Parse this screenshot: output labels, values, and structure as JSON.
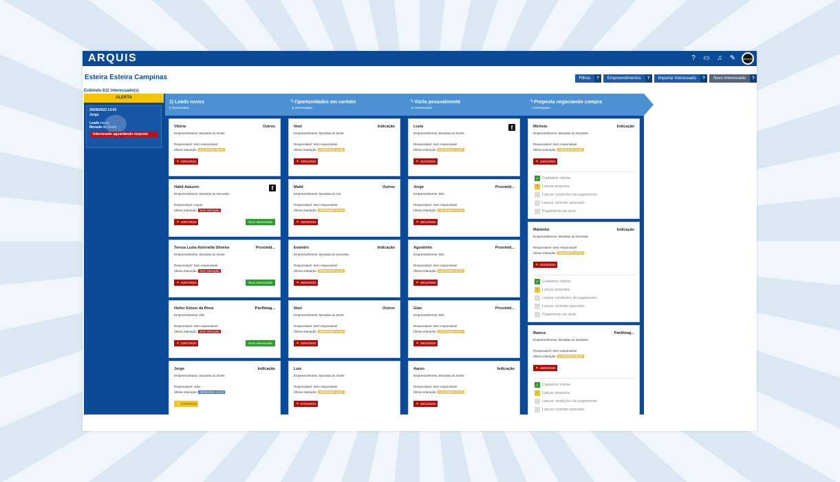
{
  "app": {
    "logo": "ARQUIS",
    "title": "Esteira Esteira Campinas",
    "count_text": "Exibindo 812 interessado(s)",
    "avatar_text": "ARQUIS"
  },
  "topbar_icons": [
    "help-icon",
    "chat-icon",
    "bell-icon",
    "edit-icon"
  ],
  "actions": [
    {
      "label": "Filtros",
      "q": "?"
    },
    {
      "label": "Empreendimentos",
      "q": "?"
    },
    {
      "label": "Importar Interessado",
      "q": "?"
    },
    {
      "label": "Novo Interessado",
      "q": "?"
    }
  ],
  "alert": {
    "header": "ALERTA",
    "card": {
      "date": "26/09/2023 13:03",
      "name": "Jorge",
      "line1_label": "Leads",
      "line1_value": "novos",
      "line2_label": "Morada",
      "line2_value": "do Oeste",
      "message": "Interessado aguardando resposta"
    }
  },
  "columns": [
    {
      "title": "1) Leads novos",
      "sub": "5 interessados",
      "cards": [
        {
          "name": "Vitória",
          "source": "Outros",
          "emp": "Empreendimento: Moradas do Oeste",
          "resp": "Responsável: Sem responsável",
          "last_label": "Última interação:",
          "last": "01/05/2023 09:47",
          "last_color": "yellow",
          "date": "02/01/2021",
          "badge": ""
        },
        {
          "name": "Habit Aatuzen",
          "source": "",
          "emp": "Empreendimento: Moradas do Noroeste",
          "resp": "Responsável: Arquis",
          "last_label": "Última interação:",
          "last": "Sem interação",
          "last_color": "red",
          "date": "22/07/2023",
          "badge": "Novo interessado"
        },
        {
          "name": "Tereza Luzia Antonella Silveira",
          "source": "Proximid...",
          "emp": "Empreendimento: Moradas do Oeste",
          "resp": "Responsável: Sem responsável",
          "last_label": "Última interação:",
          "last": "Sem interação",
          "last_color": "red",
          "date": "22/07/2023",
          "badge": "Novo interessado"
        },
        {
          "name": "Heitor Edson da Rosa",
          "source": "Panfletag...",
          "emp": "Empreendimento: N/D",
          "resp": "Responsável: Sem responsável",
          "last_label": "Última interação:",
          "last": "Sem interação",
          "last_color": "red",
          "date": "22/07/2023",
          "badge": "Novo interessado"
        },
        {
          "name": "Jorge",
          "source": "Indicação",
          "emp": "Empreendimento: Moradas do Oeste",
          "resp": "Responsável: João",
          "last_label": "Última interação:",
          "last": "26/09/2023 13:03",
          "last_color": "blue",
          "date": "27/09/2023",
          "badge": ""
        }
      ]
    },
    {
      "title": "2) Oportunidades em contato",
      "sub": "646 interessados",
      "cards": [
        {
          "name": "Noel",
          "source": "Indicação",
          "emp": "Empreendimento: Moradas do Norte",
          "resp": "Responsável: Sem responsável",
          "last_label": "Última interação:",
          "last": "03/01/2022 11:04",
          "last_color": "yellow",
          "date": "10/01/2022",
          "badge": ""
        },
        {
          "name": "Maitê",
          "source": "Outros",
          "emp": "Empreendimento: Moradas do Sul",
          "resp": "Responsável: Sem responsável",
          "last_label": "Última interação:",
          "last": "06/01/2022 10:45",
          "last_color": "yellow",
          "date": "16/04/2022",
          "badge": ""
        },
        {
          "name": "Evandro",
          "source": "Indicação",
          "emp": "Empreendimento: Moradas do Noroeste",
          "resp": "Responsável: Sem responsável",
          "last_label": "Última interação:",
          "last": "06/01/2022 12:14",
          "last_color": "yellow",
          "date": "29/04/2022",
          "badge": ""
        },
        {
          "name": "Noel",
          "source": "Outros",
          "emp": "Empreendimento: Moradas do Norte",
          "resp": "Responsável: Sem responsável",
          "last_label": "Última interação:",
          "last": "06/01/2022 12:49",
          "last_color": "yellow",
          "date": "22/01/2022",
          "badge": ""
        },
        {
          "name": "Luis",
          "source": "",
          "emp": "Empreendimento: Moradas do Oeste",
          "resp": "Responsável: Sem responsável",
          "last_label": "Última interação:",
          "last": "06/01/2022 13:01",
          "last_color": "yellow",
          "date": "07/04/2022",
          "badge": ""
        }
      ]
    },
    {
      "title": "3) Visita pessoalmente",
      "sub": "132 interessados",
      "cards": [
        {
          "name": "Luzia",
          "source": "",
          "emp": "Empreendimento: Moradas do Oeste",
          "resp": "Responsável: Sem responsável",
          "last_label": "Última interação:",
          "last": "02/09/2022 13:57",
          "last_color": "yellow",
          "date": "11/12/2022",
          "badge": "",
          "fb": true
        },
        {
          "name": "Jorge",
          "source": "Proximid...",
          "emp": "Empreendimento: N/D",
          "resp": "Responsável: Sem responsável",
          "last_label": "Última interação:",
          "last": "13/12/2022 10:33",
          "last_color": "yellow",
          "date": "26/12/2022",
          "badge": ""
        },
        {
          "name": "Agostinho",
          "source": "Proximid...",
          "emp": "Empreendimento: N/D",
          "resp": "Responsável: Sem responsável",
          "last_label": "Última interação:",
          "last": "13/12/2022 12:37",
          "last_color": "yellow",
          "date": "26/12/2022",
          "badge": ""
        },
        {
          "name": "Gian",
          "source": "Proximid...",
          "emp": "Empreendimento: N/D",
          "resp": "Responsável: Sem responsável",
          "last_label": "Última interação:",
          "last": "13/12/2022 14:07",
          "last_color": "yellow",
          "date": "26/12/2022",
          "badge": ""
        },
        {
          "name": "Aaron",
          "source": "Indicação",
          "emp": "Empreendimento: Moradas do Oeste",
          "resp": "Responsável: Sem responsável",
          "last_label": "Última interação:",
          "last": "13/12/2022 15:18",
          "last_color": "yellow",
          "date": "26/12/2022",
          "badge": ""
        }
      ]
    },
    {
      "title": "4) Proposta negociando compra",
      "sub": "27 interessados",
      "cards": [
        {
          "name": "Micheia",
          "source": "Indicação",
          "emp": "Empreendimento: Moradas do Noroeste",
          "resp": "Responsável: Sem responsável",
          "last_label": "Última interação:",
          "last": "13/01/2022 11:32",
          "last_color": "yellow",
          "date": "14/01/2022",
          "badge": "",
          "tasks": true
        },
        {
          "name": "Martinho",
          "source": "Indicação",
          "emp": "Empreendimento: Moradas do Noroeste",
          "resp": "Responsável: Sem responsável",
          "last_label": "Última interação:",
          "last": "09/03/2022 20:27",
          "last_color": "yellow",
          "date": "01/02/2022",
          "badge": "",
          "tasks": true
        },
        {
          "name": "Bianca",
          "source": "Panfletag...",
          "emp": "Empreendimento: Moradas do Nordeste",
          "resp": "Responsável: Sem responsável",
          "last_label": "Última interação:",
          "last": "11/03/2022 09:57",
          "last_color": "yellow",
          "date": "25/03/2022",
          "badge": "",
          "tasks": true
        }
      ]
    }
  ],
  "tasks": [
    {
      "label": "Cadastrar cliente",
      "state": "done",
      "mark": "✓"
    },
    {
      "label": "Lançar proposta",
      "state": "warn",
      "mark": "!"
    },
    {
      "label": "Lançar condições de pagamento",
      "state": "none",
      "mark": ""
    },
    {
      "label": "Lançar contrato assinado",
      "state": "none",
      "mark": ""
    },
    {
      "label": "Pagamento de sinal",
      "state": "none",
      "mark": ""
    }
  ]
}
